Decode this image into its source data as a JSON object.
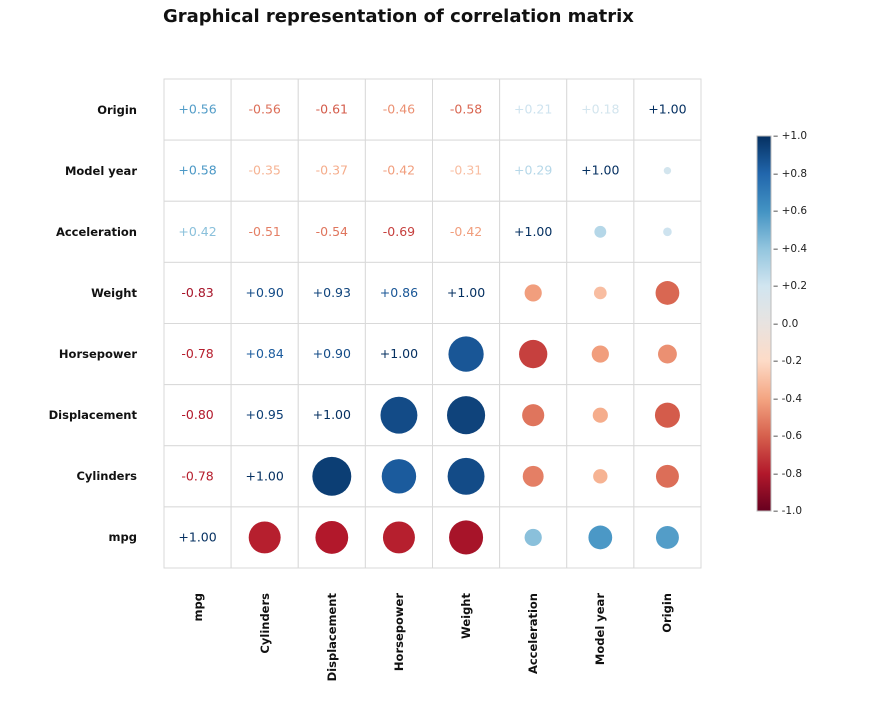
{
  "chart_data": {
    "type": "heatmap",
    "title": "Graphical representation of correlation matrix",
    "variables": [
      "mpg",
      "Cylinders",
      "Displacement",
      "Horsepower",
      "Weight",
      "Acceleration",
      "Model year",
      "Origin"
    ],
    "matrix": [
      [
        1.0,
        -0.78,
        -0.8,
        -0.78,
        -0.83,
        0.42,
        0.58,
        0.56
      ],
      [
        -0.78,
        1.0,
        0.95,
        0.84,
        0.9,
        -0.51,
        -0.35,
        -0.56
      ],
      [
        -0.8,
        0.95,
        1.0,
        0.9,
        0.93,
        -0.54,
        -0.37,
        -0.61
      ],
      [
        -0.78,
        0.84,
        0.9,
        1.0,
        0.86,
        -0.69,
        -0.42,
        -0.46
      ],
      [
        -0.83,
        0.9,
        0.93,
        0.86,
        1.0,
        -0.42,
        -0.31,
        -0.58
      ],
      [
        0.42,
        -0.51,
        -0.54,
        -0.69,
        -0.42,
        1.0,
        0.29,
        0.21
      ],
      [
        0.58,
        -0.35,
        -0.37,
        -0.42,
        -0.31,
        0.29,
        1.0,
        0.18
      ],
      [
        0.56,
        -0.56,
        -0.61,
        -0.46,
        -0.58,
        0.21,
        0.18,
        1.0
      ]
    ],
    "display": "lower triangle and diagonal as signed numbers, upper triangle as circles sized by |r|",
    "color_scale": {
      "min": -1.0,
      "max": 1.0,
      "colors": [
        "#67001f",
        "#b2182b",
        "#d6604d",
        "#f4a582",
        "#fddbc7",
        "#e8e3e0",
        "#d1e5f0",
        "#92c5de",
        "#4393c3",
        "#2166ac",
        "#053061"
      ]
    },
    "colorbar_ticks": [
      "+1.0",
      "+0.8",
      "+0.6",
      "+0.4",
      "+0.2",
      "0.0",
      "-0.2",
      "-0.4",
      "-0.6",
      "-0.8",
      "-1.0"
    ],
    "colorbar_tick_values": [
      1.0,
      0.8,
      0.6,
      0.4,
      0.2,
      0.0,
      -0.2,
      -0.4,
      -0.6,
      -0.8,
      -1.0
    ],
    "legend_placement": "right"
  }
}
